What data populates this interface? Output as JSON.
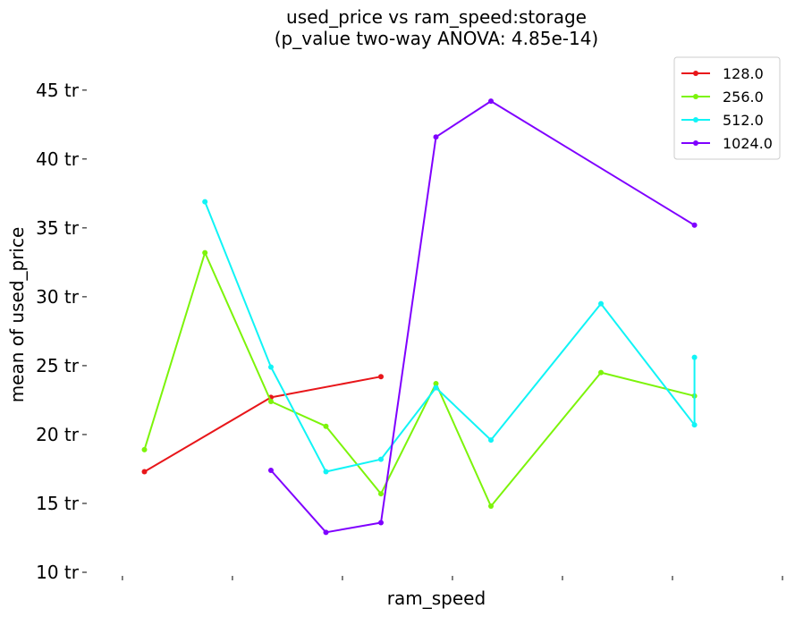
{
  "chart_data": {
    "type": "line",
    "title": "used_price vs ram_speed:storage",
    "subtitle": "(p_value two-way ANOVA: 4.85e-14)",
    "xlabel": "ram_speed",
    "ylabel": "mean of used_price",
    "ylim": [
      10,
      47
    ],
    "yticks": [
      {
        "value": 10,
        "label": "10 tr"
      },
      {
        "value": 15,
        "label": "15 tr"
      },
      {
        "value": 20,
        "label": "20 tr"
      },
      {
        "value": 25,
        "label": "25 tr"
      },
      {
        "value": 30,
        "label": "30 tr"
      },
      {
        "value": 35,
        "label": "35 tr"
      },
      {
        "value": 40,
        "label": "40 tr"
      },
      {
        "value": 45,
        "label": "45 tr"
      }
    ],
    "xticks": [
      1,
      3,
      5,
      7,
      9,
      11,
      13
    ],
    "xlim": [
      0.4,
      13.0
    ],
    "grid": false,
    "legend_position": "top-right",
    "series": [
      {
        "name": "128.0",
        "color": "#e8161a",
        "points": [
          [
            1.4,
            17.3
          ],
          [
            3.7,
            22.7
          ],
          [
            5.7,
            24.2
          ]
        ]
      },
      {
        "name": "256.0",
        "color": "#7cf40a",
        "points": [
          [
            1.4,
            18.9
          ],
          [
            2.5,
            33.2
          ],
          [
            3.7,
            22.4
          ],
          [
            4.7,
            20.6
          ],
          [
            5.7,
            15.7
          ],
          [
            6.7,
            23.7
          ],
          [
            7.7,
            14.8
          ],
          [
            9.7,
            24.5
          ],
          [
            11.4,
            22.8
          ]
        ]
      },
      {
        "name": "512.0",
        "color": "#11f4f6",
        "points": [
          [
            2.5,
            36.9
          ],
          [
            3.7,
            24.9
          ],
          [
            4.7,
            17.3
          ],
          [
            5.7,
            18.2
          ],
          [
            6.7,
            23.4
          ],
          [
            7.7,
            19.6
          ],
          [
            9.7,
            29.5
          ],
          [
            11.4,
            20.7
          ],
          [
            11.4,
            25.6
          ]
        ]
      },
      {
        "name": "1024.0",
        "color": "#7f00ff",
        "points": [
          [
            3.7,
            17.4
          ],
          [
            4.7,
            12.9
          ],
          [
            5.7,
            13.6
          ],
          [
            6.7,
            41.6
          ],
          [
            7.7,
            44.2
          ],
          [
            11.4,
            35.2
          ]
        ]
      }
    ]
  }
}
